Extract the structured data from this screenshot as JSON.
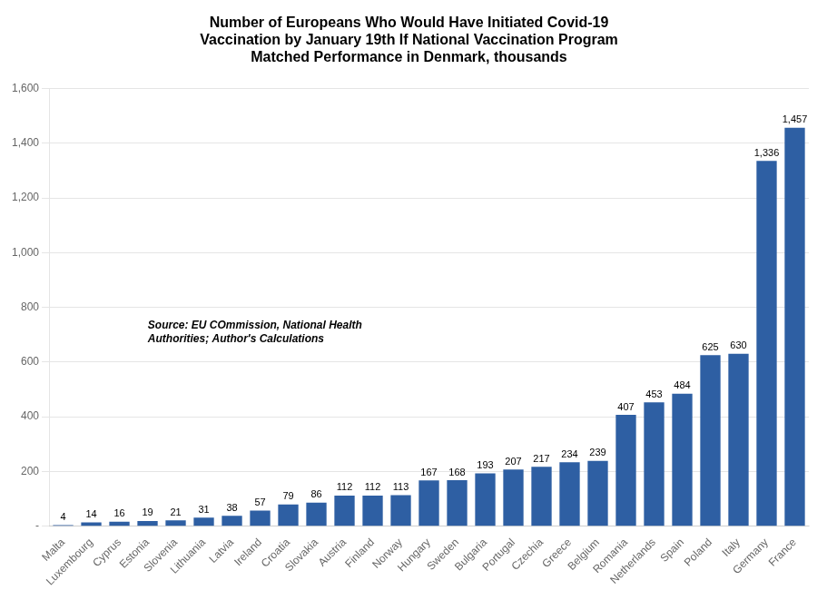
{
  "chart_data": {
    "type": "bar",
    "title": "Number of Europeans Who Would Have Initiated Covid-19\nVaccination by January 19th If National Vaccination Program\nMatched Performance in Denmark, thousands",
    "categories": [
      "Malta",
      "Luxembourg",
      "Cyprus",
      "Estonia",
      "Slovenia",
      "Lithuania",
      "Latvia",
      "Ireland",
      "Croatia",
      "Slovakia",
      "Austria",
      "Finland",
      "Norway",
      "Hungary",
      "Sweden",
      "Bulgaria",
      "Portugal",
      "Czechia",
      "Greece",
      "Belgium",
      "Romania",
      "Netherlands",
      "Spain",
      "Poland",
      "Italy",
      "Germany",
      "France"
    ],
    "values": [
      4,
      14,
      16,
      19,
      21,
      31,
      38,
      57,
      79,
      86,
      112,
      112,
      113,
      167,
      168,
      193,
      207,
      217,
      234,
      239,
      407,
      453,
      484,
      625,
      630,
      1336,
      1457
    ],
    "value_labels": [
      "4",
      "14",
      "16",
      "19",
      "21",
      "31",
      "38",
      "57",
      "79",
      "86",
      "112",
      "112",
      "113",
      "167",
      "168",
      "193",
      "207",
      "217",
      "234",
      "239",
      "407",
      "453",
      "484",
      "625",
      "630",
      "1,336",
      "1,457"
    ],
    "color": "#2E5FA3",
    "ylim": [
      0,
      1600
    ],
    "yticks": [
      {
        "value": 0,
        "label": "-"
      },
      200,
      400,
      600,
      800,
      {
        "value": 1000,
        "label": "1,000"
      },
      {
        "value": 1200,
        "label": "1,200"
      },
      {
        "value": 1400,
        "label": "1,400"
      },
      {
        "value": 1600,
        "label": "1,600"
      }
    ],
    "grid": true,
    "data_labels": true,
    "annotations": [
      "Source: EU COmmission, National Health\nAuthorities; Author's Calculations"
    ]
  }
}
